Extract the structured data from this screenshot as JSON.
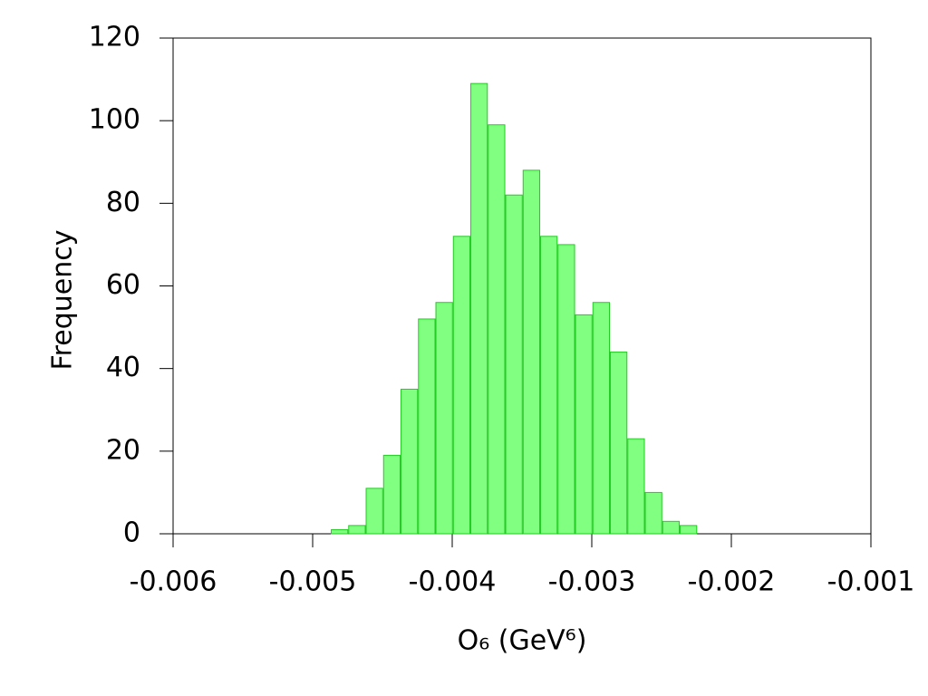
{
  "chart_data": {
    "type": "histogram",
    "x_label": "O₆ (GeV⁶)",
    "y_label": "Frequency",
    "bins": [
      -0.00487,
      -0.004745,
      -0.00462,
      -0.004495,
      -0.00437,
      -0.004245,
      -0.00412,
      -0.003995,
      -0.00387,
      -0.003745,
      -0.00362,
      -0.003495,
      -0.00337,
      -0.003245,
      -0.00312,
      -0.002995,
      -0.00287,
      -0.002745,
      -0.00262,
      -0.002495,
      -0.00237,
      -0.002245
    ],
    "values": [
      1,
      2,
      11,
      19,
      35,
      52,
      56,
      72,
      109,
      99,
      82,
      88,
      72,
      70,
      53,
      56,
      44,
      23,
      10,
      3,
      2
    ],
    "color": "#80ff80",
    "edge_color": "#22cc22",
    "xlim": [
      -0.006,
      -0.001
    ],
    "xticks": [
      -0.006,
      -0.005,
      -0.004,
      -0.003,
      -0.002,
      -0.001
    ],
    "ylim": [
      0,
      120
    ],
    "yticks": [
      0,
      20,
      40,
      60,
      80,
      100,
      120
    ],
    "grid": false
  }
}
